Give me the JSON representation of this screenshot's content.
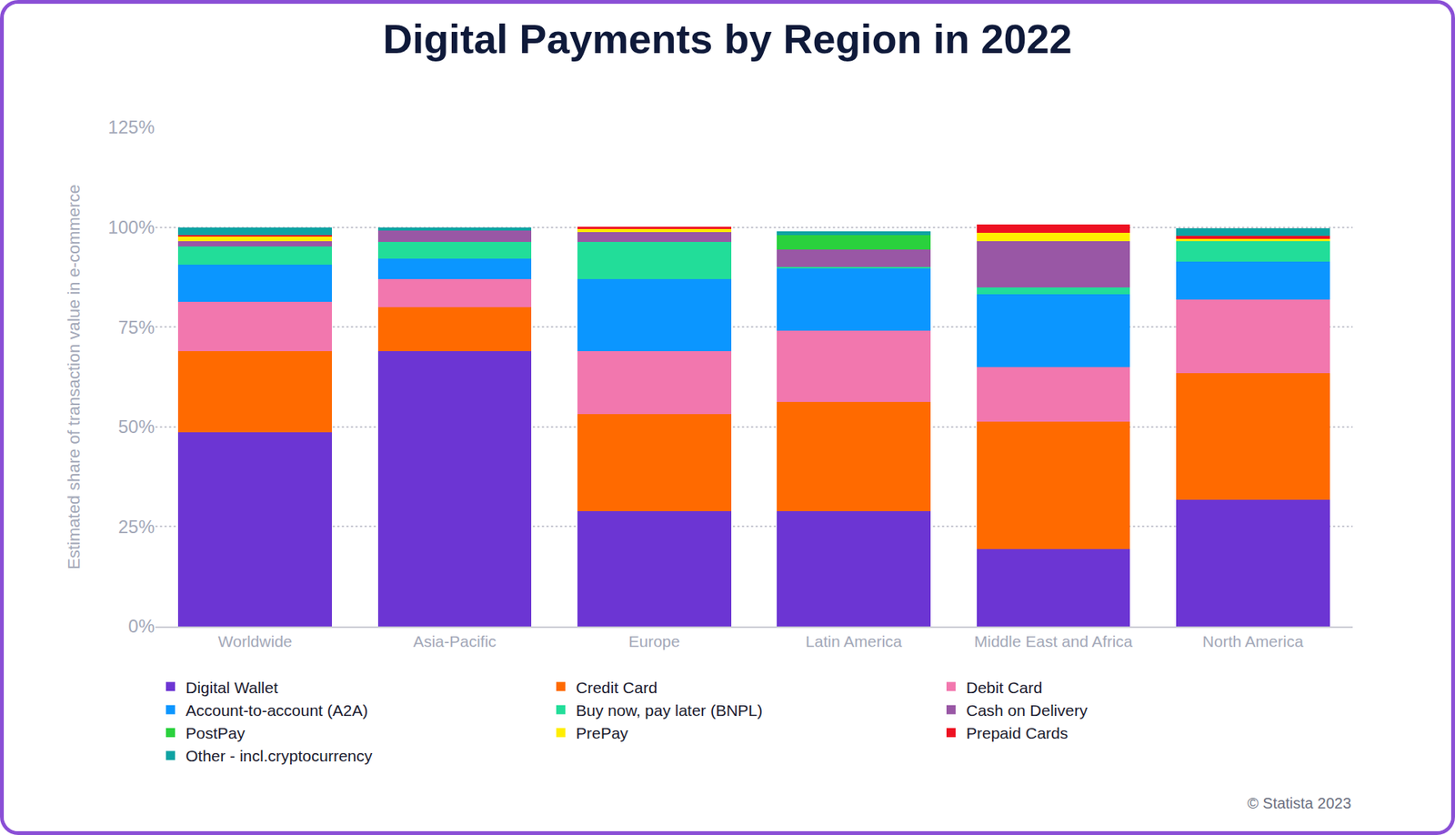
{
  "chart_data": {
    "type": "bar",
    "stacked": true,
    "title": "Digital Payments by Region in 2022",
    "y_label": "Estimated share of transaction value in e-commerce",
    "source": "© Statista 2023",
    "categories": [
      "Worldwide",
      "Asia-Pacific",
      "Europe",
      "Latin America",
      "Middle East and Africa",
      "North America"
    ],
    "ylim": [
      0,
      125
    ],
    "yticks": [
      {
        "value": 0,
        "label": "0%"
      },
      {
        "value": 25,
        "label": "25%"
      },
      {
        "value": 50,
        "label": "50%"
      },
      {
        "value": 75,
        "label": "75%"
      },
      {
        "value": 100,
        "label": "100%"
      },
      {
        "value": 125,
        "label": "125%"
      }
    ],
    "grid": true,
    "legend": "bottom",
    "series": [
      {
        "name": "Digital Wallet",
        "color": "#6c35d3",
        "values": [
          48.6,
          69.0,
          28.9,
          28.9,
          19.4,
          31.7
        ]
      },
      {
        "name": "Credit Card",
        "color": "#ff6a00",
        "values": [
          20.4,
          10.9,
          24.3,
          27.4,
          31.8,
          31.7
        ]
      },
      {
        "name": "Debit Card",
        "color": "#f277ae",
        "values": [
          12.3,
          7.1,
          15.8,
          17.8,
          13.8,
          18.5
        ]
      },
      {
        "name": "Account-to-account (A2A)",
        "color": "#0b96ff",
        "values": [
          9.3,
          5.1,
          18.0,
          15.7,
          18.3,
          9.5
        ]
      },
      {
        "name": "Buy now, pay later (BNPL)",
        "color": "#22dd99",
        "values": [
          4.6,
          4.2,
          9.3,
          0.3,
          1.7,
          5.1
        ]
      },
      {
        "name": "Cash on Delivery",
        "color": "#9957a5",
        "values": [
          1.3,
          2.8,
          2.5,
          4.3,
          11.5,
          0
        ]
      },
      {
        "name": "PostPay",
        "color": "#2ad13d",
        "values": [
          0,
          0,
          0,
          3.7,
          0,
          0
        ]
      },
      {
        "name": "PrePay",
        "color": "#ffee00",
        "values": [
          1.1,
          0,
          0.7,
          0,
          2.1,
          0.5
        ]
      },
      {
        "name": "Prepaid Cards",
        "color": "#ee1122",
        "values": [
          0.5,
          0,
          0.7,
          0,
          2.1,
          0.8
        ]
      },
      {
        "name": "Other - incl.cryptocurrency",
        "color": "#0ea3a3",
        "values": [
          1.9,
          0.9,
          0,
          0.8,
          0,
          1.9
        ]
      }
    ]
  }
}
